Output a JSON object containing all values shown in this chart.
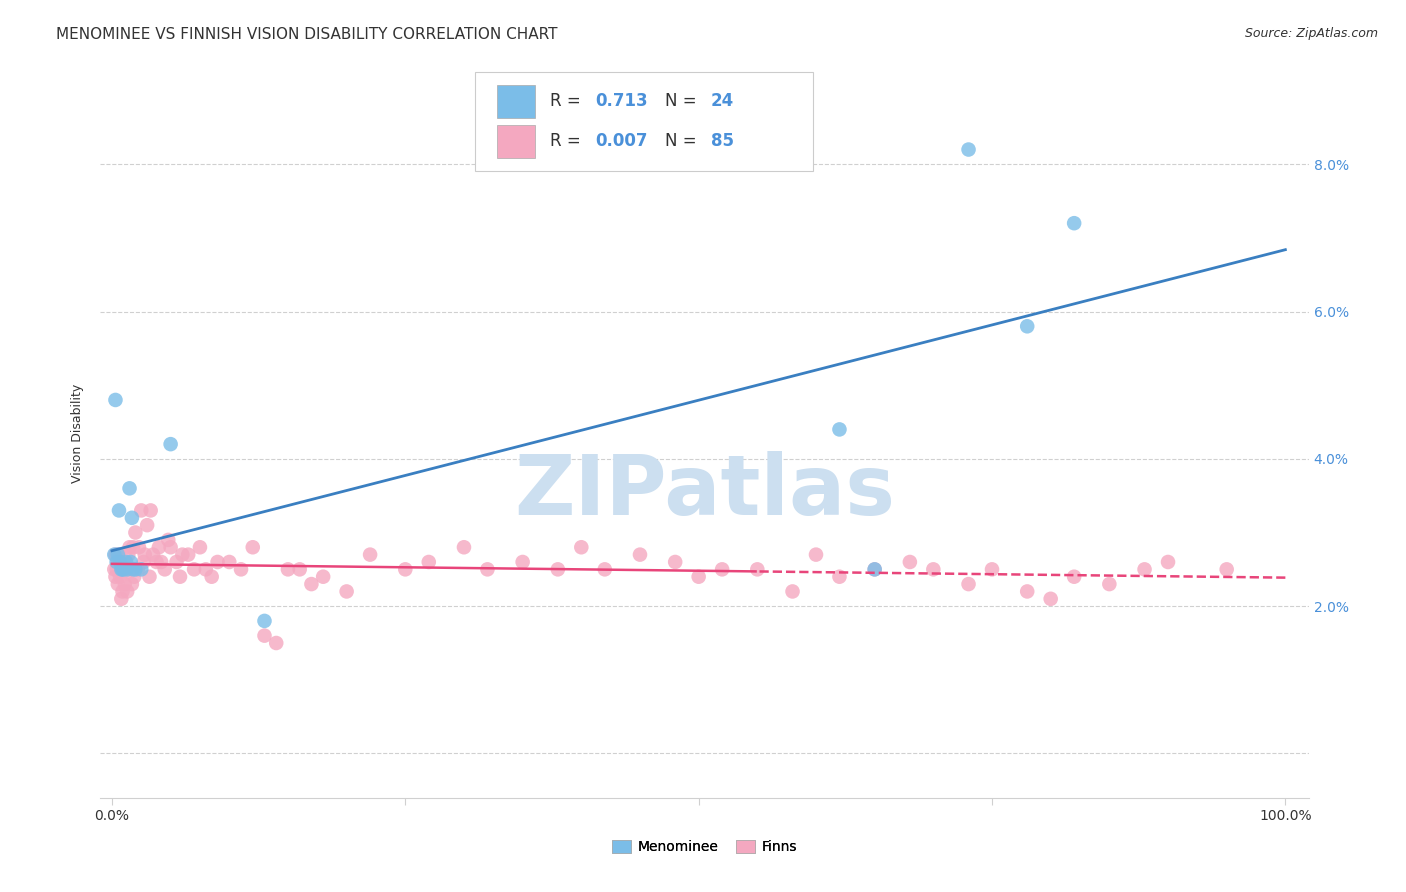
{
  "title": "MENOMINEE VS FINNISH VISION DISABILITY CORRELATION CHART",
  "source": "Source: ZipAtlas.com",
  "ylabel": "Vision Disability",
  "blue_color": "#7bbde8",
  "pink_color": "#f4a8c0",
  "blue_line_color": "#3a7fc1",
  "pink_line_color": "#e8457a",
  "watermark_color": "#ccdff0",
  "background_color": "#ffffff",
  "grid_color": "#d0d0d0",
  "menominee_N": 24,
  "finns_N": 85,
  "menominee_R": 0.713,
  "finns_R": 0.007,
  "menominee_x": [
    0.002,
    0.003,
    0.004,
    0.005,
    0.006,
    0.007,
    0.008,
    0.009,
    0.01,
    0.012,
    0.013,
    0.015,
    0.016,
    0.017,
    0.018,
    0.02,
    0.025,
    0.05,
    0.13,
    0.62,
    0.65,
    0.73,
    0.78,
    0.82
  ],
  "menominee_y": [
    0.027,
    0.048,
    0.026,
    0.027,
    0.033,
    0.026,
    0.025,
    0.025,
    0.025,
    0.026,
    0.025,
    0.036,
    0.026,
    0.032,
    0.025,
    0.025,
    0.025,
    0.042,
    0.018,
    0.044,
    0.025,
    0.082,
    0.058,
    0.072
  ],
  "finns_x": [
    0.002,
    0.003,
    0.003,
    0.004,
    0.005,
    0.005,
    0.006,
    0.007,
    0.008,
    0.008,
    0.009,
    0.01,
    0.011,
    0.012,
    0.013,
    0.014,
    0.015,
    0.016,
    0.017,
    0.018,
    0.019,
    0.02,
    0.022,
    0.023,
    0.025,
    0.027,
    0.028,
    0.03,
    0.032,
    0.033,
    0.035,
    0.038,
    0.04,
    0.042,
    0.045,
    0.048,
    0.05,
    0.055,
    0.058,
    0.06,
    0.065,
    0.07,
    0.075,
    0.08,
    0.085,
    0.09,
    0.1,
    0.11,
    0.12,
    0.13,
    0.14,
    0.15,
    0.16,
    0.17,
    0.18,
    0.2,
    0.22,
    0.25,
    0.27,
    0.3,
    0.32,
    0.35,
    0.38,
    0.4,
    0.42,
    0.45,
    0.48,
    0.5,
    0.52,
    0.55,
    0.58,
    0.6,
    0.62,
    0.65,
    0.68,
    0.7,
    0.73,
    0.75,
    0.78,
    0.8,
    0.82,
    0.85,
    0.88,
    0.9,
    0.95
  ],
  "finns_y": [
    0.025,
    0.024,
    0.027,
    0.025,
    0.026,
    0.023,
    0.027,
    0.024,
    0.025,
    0.021,
    0.022,
    0.026,
    0.023,
    0.025,
    0.022,
    0.027,
    0.028,
    0.025,
    0.023,
    0.028,
    0.024,
    0.03,
    0.025,
    0.028,
    0.033,
    0.026,
    0.027,
    0.031,
    0.024,
    0.033,
    0.027,
    0.026,
    0.028,
    0.026,
    0.025,
    0.029,
    0.028,
    0.026,
    0.024,
    0.027,
    0.027,
    0.025,
    0.028,
    0.025,
    0.024,
    0.026,
    0.026,
    0.025,
    0.028,
    0.016,
    0.015,
    0.025,
    0.025,
    0.023,
    0.024,
    0.022,
    0.027,
    0.025,
    0.026,
    0.028,
    0.025,
    0.026,
    0.025,
    0.028,
    0.025,
    0.027,
    0.026,
    0.024,
    0.025,
    0.025,
    0.022,
    0.027,
    0.024,
    0.025,
    0.026,
    0.025,
    0.023,
    0.025,
    0.022,
    0.021,
    0.024,
    0.023,
    0.025,
    0.026,
    0.025
  ],
  "xlim": [
    -0.01,
    1.02
  ],
  "ylim": [
    -0.006,
    0.093
  ],
  "ytick_vals": [
    0.0,
    0.02,
    0.04,
    0.06,
    0.08
  ],
  "ytick_labels_right": [
    "",
    "2.0%",
    "4.0%",
    "6.0%",
    "8.0%"
  ],
  "xtick_vals": [
    0.0,
    0.25,
    0.5,
    0.75,
    1.0
  ],
  "xtick_labels": [
    "0.0%",
    "",
    "",
    "",
    "100.0%"
  ],
  "title_fontsize": 11,
  "axis_label_fontsize": 9,
  "tick_fontsize": 10,
  "legend_fontsize": 12,
  "source_fontsize": 9,
  "tick_color": "#4a90d9",
  "text_color": "#333333",
  "watermark_text": "ZIPatlas",
  "watermark_fontsize": 60
}
